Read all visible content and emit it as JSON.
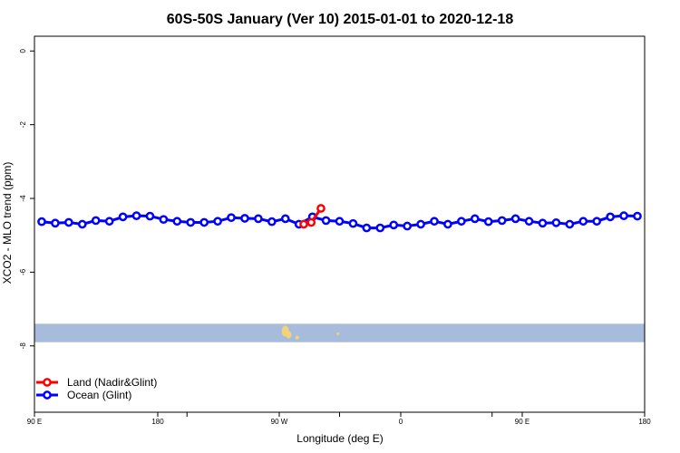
{
  "chart_data": {
    "type": "line",
    "title": "60S-50S January (Ver 10)   2015-01-01 to 2020-12-18",
    "xlabel": "Longitude (deg E)",
    "ylabel": "XCO2 - MLO trend (ppm)",
    "xlim": [
      0,
      360
    ],
    "ylim": [
      -9.8,
      0.4
    ],
    "x_ticks": [
      {
        "value": 0,
        "label": "90 E"
      },
      {
        "value": 90,
        "label": "180"
      },
      {
        "value": 180,
        "label": "90 W"
      },
      {
        "value": 270,
        "label": "0"
      },
      {
        "value": 360,
        "label": "90 E"
      }
    ],
    "x_ticks_secondary": [
      0,
      90,
      180,
      270,
      360
    ],
    "x_tick_labels_extra": [
      {
        "value": 360,
        "label": "180"
      }
    ],
    "y_ticks": [
      {
        "value": 0,
        "label": "0"
      },
      {
        "value": -2,
        "label": "-2"
      },
      {
        "value": -4,
        "label": "-4"
      },
      {
        "value": -6,
        "label": "-6"
      },
      {
        "value": -8,
        "label": "-8"
      }
    ],
    "ocean_band": {
      "y_min": -7.9,
      "y_max": -7.4,
      "color": "#a7bcdc"
    },
    "land_color": "#f5d27a",
    "series": [
      {
        "name": "Land (Nadir&Glint)",
        "color": "#ff0000",
        "x": [
          199.5,
          204.5,
          211
        ],
        "y": [
          -4.7,
          -4.65,
          -4.27
        ]
      },
      {
        "name": "Ocean (Glint)",
        "color": "#0000ff",
        "x": [
          5,
          15,
          25,
          35,
          45,
          55,
          65,
          75,
          85,
          95,
          105,
          115,
          125,
          135,
          145,
          155,
          165,
          175,
          185,
          195,
          205,
          215,
          225,
          235,
          245,
          255,
          265,
          275,
          285,
          295,
          305,
          315,
          325,
          335,
          345,
          355,
          365,
          375,
          385,
          395,
          405,
          415,
          425,
          435,
          445
        ],
        "y": [
          -4.63,
          -4.67,
          -4.65,
          -4.7,
          -4.6,
          -4.62,
          -4.5,
          -4.47,
          -4.48,
          -4.57,
          -4.62,
          -4.65,
          -4.65,
          -4.62,
          -4.52,
          -4.54,
          -4.55,
          -4.63,
          -4.55,
          -4.7,
          -4.5,
          -4.6,
          -4.62,
          -4.68,
          -4.8,
          -4.8,
          -4.72,
          -4.75,
          -4.7,
          -4.62,
          -4.7,
          -4.62,
          -4.55,
          -4.63,
          -4.6,
          -4.55,
          -4.62,
          -4.67,
          -4.66,
          -4.7,
          -4.62,
          -4.62,
          -4.5,
          -4.47,
          -4.48
        ]
      }
    ],
    "legend_position": "bottom-left"
  }
}
